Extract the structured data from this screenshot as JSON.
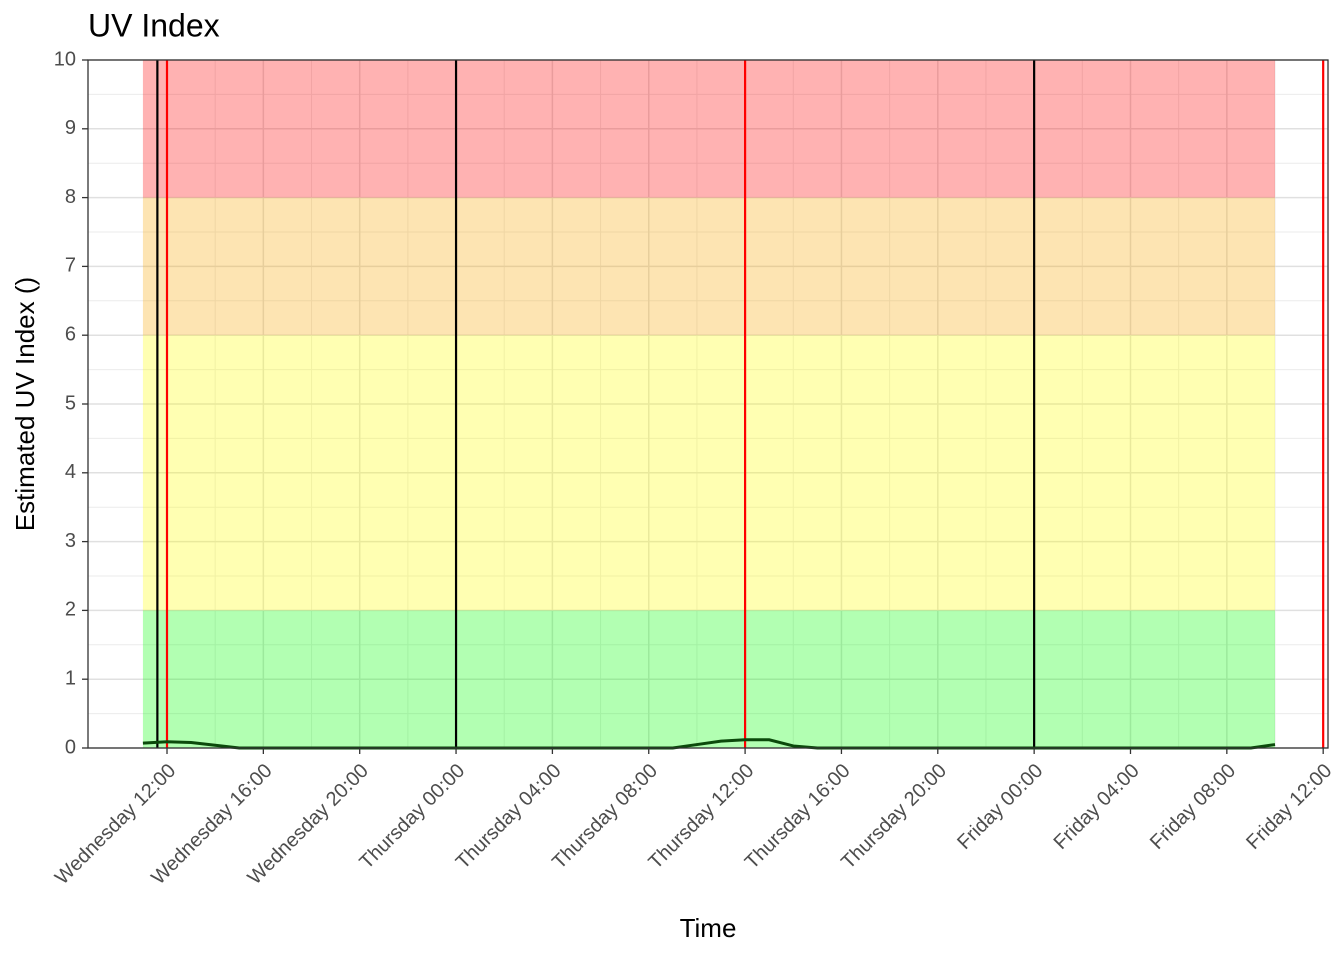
{
  "chart_data": {
    "type": "line",
    "title": "UV Index",
    "x_label": "Time",
    "y_label": "Estimated UV Index ()",
    "x": [
      11,
      12,
      13,
      14,
      15,
      16,
      17,
      18,
      19,
      20,
      21,
      22,
      23,
      24,
      25,
      26,
      27,
      28,
      29,
      30,
      31,
      32,
      33,
      34,
      35,
      36,
      37,
      38,
      39,
      40,
      41,
      42,
      43,
      44,
      45,
      46,
      47,
      48,
      49,
      50,
      51,
      52,
      53,
      54,
      55,
      56,
      57,
      58
    ],
    "values": [
      0.07,
      0.09,
      0.08,
      0.04,
      0,
      0,
      0,
      0,
      0,
      0,
      0,
      0,
      0,
      0,
      0,
      0,
      0,
      0,
      0,
      0,
      0,
      0,
      0,
      0.05,
      0.1,
      0.12,
      0.12,
      0.03,
      0,
      0,
      0,
      0,
      0,
      0,
      0,
      0,
      0,
      0,
      0,
      0,
      0,
      0,
      0,
      0,
      0,
      0,
      0,
      0.05
    ],
    "color": "#0b4a0b",
    "bands": [
      {
        "from": 0,
        "to": 2,
        "color": "#00ff00"
      },
      {
        "from": 2,
        "to": 6,
        "color": "#ffff00"
      },
      {
        "from": 6,
        "to": 8,
        "color": "#f9a500"
      },
      {
        "from": 8,
        "to": 10,
        "color": "#ff0000"
      }
    ],
    "band_x": [
      11,
      58
    ],
    "vlines": [
      {
        "x": 12,
        "color": "#ff0000"
      },
      {
        "x": 36,
        "color": "#ff0000"
      },
      {
        "x": 60,
        "color": "#ff0000"
      },
      {
        "x": 11.6,
        "color": "#000000"
      },
      {
        "x": 24,
        "color": "#000000"
      },
      {
        "x": 48,
        "color": "#000000"
      }
    ],
    "xlim": [
      8.72,
      60.2
    ],
    "ylim": [
      0,
      10
    ],
    "xticks": [
      {
        "value": 12,
        "label": "Wednesday 12:00"
      },
      {
        "value": 16,
        "label": "Wednesday 16:00"
      },
      {
        "value": 20,
        "label": "Wednesday 20:00"
      },
      {
        "value": 24,
        "label": "Thursday 00:00"
      },
      {
        "value": 28,
        "label": "Thursday 04:00"
      },
      {
        "value": 32,
        "label": "Thursday 08:00"
      },
      {
        "value": 36,
        "label": "Thursday 12:00"
      },
      {
        "value": 40,
        "label": "Thursday 16:00"
      },
      {
        "value": 44,
        "label": "Thursday 20:00"
      },
      {
        "value": 48,
        "label": "Friday 00:00"
      },
      {
        "value": 52,
        "label": "Friday 04:00"
      },
      {
        "value": 56,
        "label": "Friday 08:00"
      },
      {
        "value": 60,
        "label": "Friday 12:00"
      }
    ],
    "yticks": [
      0,
      1,
      2,
      3,
      4,
      5,
      6,
      7,
      8,
      9,
      10
    ],
    "grid": true
  }
}
